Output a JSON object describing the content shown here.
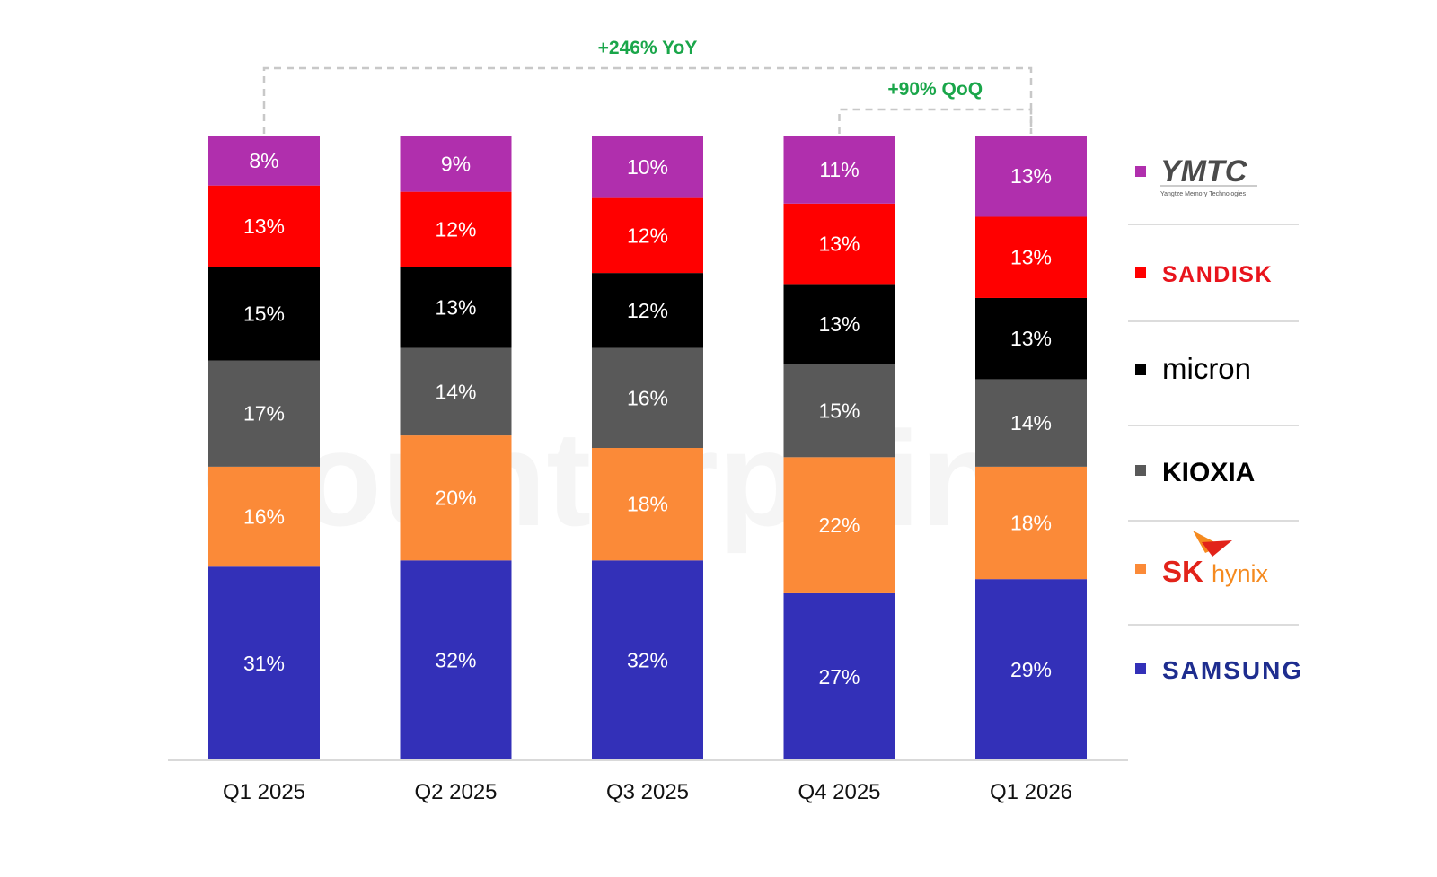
{
  "chart_data": {
    "type": "bar",
    "stacked": true,
    "percent": true,
    "categories": [
      "Q1 2025",
      "Q2 2025",
      "Q3 2025",
      "Q4 2025",
      "Q1 2026"
    ],
    "series": [
      {
        "name": "SAMSUNG",
        "color": "#3330b8",
        "values": [
          31,
          32,
          32,
          27,
          29
        ]
      },
      {
        "name": "SK hynix",
        "color": "#fb8a38",
        "values": [
          16,
          20,
          18,
          22,
          18
        ]
      },
      {
        "name": "KIOXIA",
        "color": "#595959",
        "values": [
          17,
          14,
          16,
          15,
          14
        ]
      },
      {
        "name": "micron",
        "color": "#000000",
        "values": [
          15,
          13,
          12,
          13,
          13
        ]
      },
      {
        "name": "SANDISK",
        "color": "#ff0000",
        "values": [
          13,
          12,
          12,
          13,
          13
        ]
      },
      {
        "name": "YMTC",
        "color": "#b02fad",
        "values": [
          8,
          9,
          10,
          11,
          13
        ]
      }
    ],
    "value_suffix": "%",
    "legend_position": "right",
    "grid": false,
    "annotations": [
      {
        "text": "+246% YoY",
        "from": "Q1 2025",
        "to": "Q1 2026"
      },
      {
        "text": "+90% QoQ",
        "from": "Q4 2025",
        "to": "Q1 2026"
      }
    ]
  },
  "legend": {
    "ymtc_sub": "Yangtze Memory Technologies"
  },
  "watermark": "Counterpoint"
}
